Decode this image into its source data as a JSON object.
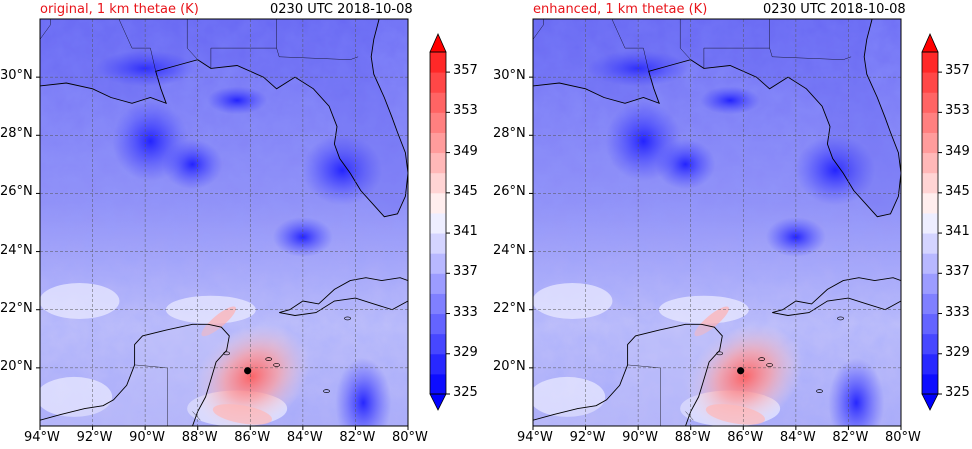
{
  "colors": {
    "title_highlight": "#e8141a",
    "coast": "#000000",
    "grid": "#555555",
    "storm_center": "#000000"
  },
  "panels": [
    {
      "title": "original, 1 km thetae (K)",
      "time": "0230 UTC 2018-10-08"
    },
    {
      "title": "enhanced, 1 km thetae (K)",
      "time": "0230 UTC 2018-10-08"
    }
  ],
  "map": {
    "extent": {
      "lon": [
        -94,
        -80
      ],
      "lat": [
        18,
        32
      ]
    },
    "lon_ticks": [
      "94°W",
      "92°W",
      "90°W",
      "88°W",
      "86°W",
      "84°W",
      "82°W",
      "80°W"
    ],
    "lat_ticks": [
      "20°N",
      "22°N",
      "24°N",
      "26°N",
      "28°N",
      "30°N"
    ],
    "storm_center": {
      "lon": -86.1,
      "lat": 19.9
    }
  },
  "colorbar": {
    "tick_labels": [
      "325",
      "329",
      "333",
      "337",
      "341",
      "345",
      "349",
      "353",
      "357"
    ],
    "levels": [
      325,
      327,
      329,
      331,
      333,
      335,
      337,
      339,
      341,
      343,
      345,
      347,
      349,
      351,
      353,
      355,
      357,
      359
    ],
    "colors": [
      "#0d0dff",
      "#2828ff",
      "#4747ff",
      "#6464ff",
      "#8080ff",
      "#9c9cff",
      "#b8b8ff",
      "#d4d4ff",
      "#eeeeff",
      "#ffeeee",
      "#ffd4d4",
      "#ffb8b8",
      "#ff9c9c",
      "#ff8080",
      "#ff6464",
      "#ff4747",
      "#ff2828"
    ],
    "extend_low": "#0000ff",
    "extend_high": "#ff0000"
  }
}
